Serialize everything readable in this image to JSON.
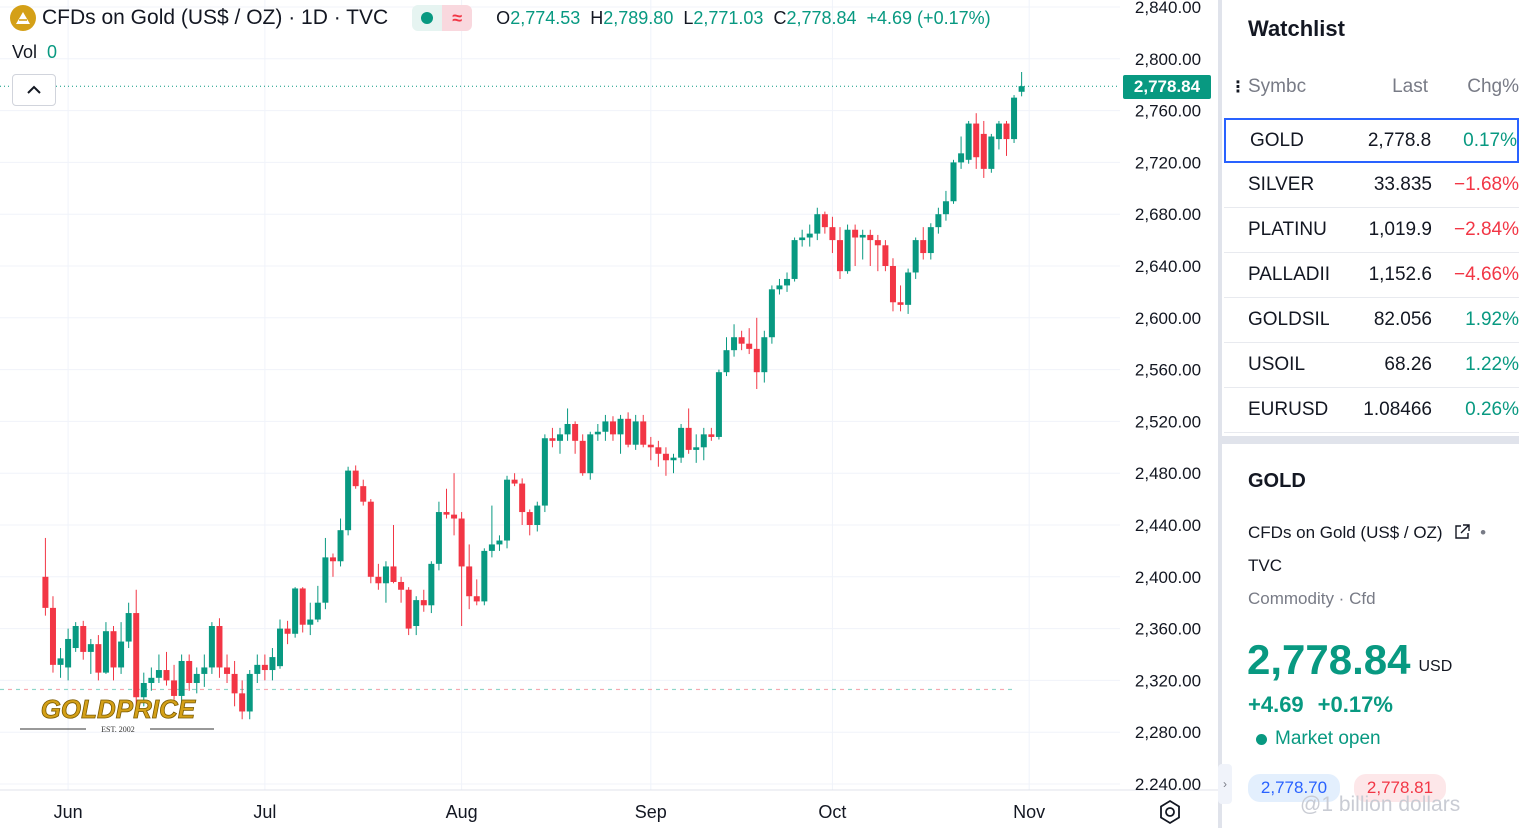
{
  "legend": {
    "title": "CFDs on Gold (US$ / OZ) · 1D · TVC",
    "ohlc": [
      {
        "key": "O",
        "value": "2,774.53"
      },
      {
        "key": "H",
        "value": "2,789.80"
      },
      {
        "key": "L",
        "value": "2,771.03"
      },
      {
        "key": "C",
        "value": "2,778.84"
      }
    ],
    "change": "+4.69 (+0.17%)"
  },
  "volume": {
    "label": "Vol",
    "value": "0"
  },
  "last_price_tag": "2,778.84",
  "watermark_logo": {
    "brand": "GOLDPRICE",
    "est": "EST. 2002"
  },
  "watermark_text": "@1 billion dollars",
  "colors": {
    "up": "#089981",
    "down": "#f23645",
    "accent": "#2962ff",
    "grid": "#f0f3fa"
  },
  "watchlist": {
    "title": "Watchlist",
    "columns": {
      "symbol": "Symbc",
      "last": "Last",
      "change": "Chg%"
    },
    "rows": [
      {
        "symbol": "GOLD",
        "last": "2,778.8",
        "change": "0.17%",
        "dir": "up",
        "selected": true
      },
      {
        "symbol": "SILVER",
        "last": "33.835",
        "change": "−1.68%",
        "dir": "down",
        "selected": false
      },
      {
        "symbol": "PLATINU",
        "last": "1,019.9",
        "change": "−2.84%",
        "dir": "down",
        "selected": false
      },
      {
        "symbol": "PALLADII",
        "last": "1,152.6",
        "change": "−4.66%",
        "dir": "down",
        "selected": false
      },
      {
        "symbol": "GOLDSIL'",
        "last": "82.056",
        "change": "1.92%",
        "dir": "up",
        "selected": false
      },
      {
        "symbol": "USOIL",
        "last": "68.26",
        "change": "1.22%",
        "dir": "up",
        "selected": false
      },
      {
        "symbol": "EURUSD",
        "last": "1.08466",
        "change": "0.26%",
        "dir": "up",
        "selected": false
      }
    ]
  },
  "details": {
    "symbol": "GOLD",
    "name": "CFDs on Gold (US$ / OZ)",
    "exchange": "TVC",
    "type": "Commodity · Cfd",
    "price": "2,778.84",
    "currency": "USD",
    "change_abs": "+4.69",
    "change_pct": "+0.17%",
    "status": "Market open",
    "bid": "2,778.70",
    "ask": "2,778.81"
  },
  "chart_data": {
    "type": "candlestick",
    "title": "CFDs on Gold (US$ / OZ) · 1D · TVC",
    "x_tick_labels": [
      "Jun",
      "Jul",
      "Aug",
      "Sep",
      "Oct",
      "Nov"
    ],
    "x_tick_days": [
      3,
      29,
      55,
      80,
      104,
      130
    ],
    "y_tick_labels": [
      "2,840.00",
      "2,800.00",
      "2,760.00",
      "2,720.00",
      "2,680.00",
      "2,640.00",
      "2,600.00",
      "2,560.00",
      "2,520.00",
      "2,480.00",
      "2,440.00",
      "2,400.00",
      "2,360.00",
      "2,320.00",
      "2,280.00",
      "2.240.00"
    ],
    "ylim": [
      2240,
      2840
    ],
    "xlim": [
      -6,
      142
    ],
    "last_price": 2778.84,
    "reference_price": 2313,
    "candles": [
      {
        "day": 0,
        "o": 2400,
        "h": 2430,
        "l": 2370,
        "c": 2376
      },
      {
        "day": 1,
        "o": 2376,
        "h": 2385,
        "l": 2326,
        "c": 2332
      },
      {
        "day": 2,
        "o": 2332,
        "h": 2345,
        "l": 2322,
        "c": 2337
      },
      {
        "day": 3,
        "o": 2330,
        "h": 2360,
        "l": 2320,
        "c": 2352
      },
      {
        "day": 4,
        "o": 2345,
        "h": 2365,
        "l": 2342,
        "c": 2362
      },
      {
        "day": 5,
        "o": 2362,
        "h": 2366,
        "l": 2336,
        "c": 2342
      },
      {
        "day": 6,
        "o": 2342,
        "h": 2352,
        "l": 2325,
        "c": 2348
      },
      {
        "day": 7,
        "o": 2348,
        "h": 2355,
        "l": 2320,
        "c": 2326
      },
      {
        "day": 8,
        "o": 2326,
        "h": 2365,
        "l": 2325,
        "c": 2358
      },
      {
        "day": 9,
        "o": 2358,
        "h": 2362,
        "l": 2320,
        "c": 2330
      },
      {
        "day": 10,
        "o": 2330,
        "h": 2365,
        "l": 2325,
        "c": 2350
      },
      {
        "day": 11,
        "o": 2350,
        "h": 2380,
        "l": 2345,
        "c": 2372
      },
      {
        "day": 12,
        "o": 2372,
        "h": 2390,
        "l": 2300,
        "c": 2307
      },
      {
        "day": 13,
        "o": 2307,
        "h": 2326,
        "l": 2300,
        "c": 2318
      },
      {
        "day": 14,
        "o": 2318,
        "h": 2330,
        "l": 2312,
        "c": 2322
      },
      {
        "day": 15,
        "o": 2322,
        "h": 2340,
        "l": 2318,
        "c": 2328
      },
      {
        "day": 16,
        "o": 2328,
        "h": 2342,
        "l": 2316,
        "c": 2320
      },
      {
        "day": 17,
        "o": 2320,
        "h": 2332,
        "l": 2305,
        "c": 2308
      },
      {
        "day": 18,
        "o": 2308,
        "h": 2340,
        "l": 2303,
        "c": 2335
      },
      {
        "day": 19,
        "o": 2335,
        "h": 2340,
        "l": 2312,
        "c": 2318
      },
      {
        "day": 20,
        "o": 2318,
        "h": 2330,
        "l": 2310,
        "c": 2325
      },
      {
        "day": 21,
        "o": 2325,
        "h": 2340,
        "l": 2315,
        "c": 2330
      },
      {
        "day": 22,
        "o": 2330,
        "h": 2365,
        "l": 2325,
        "c": 2362
      },
      {
        "day": 23,
        "o": 2362,
        "h": 2368,
        "l": 2322,
        "c": 2330
      },
      {
        "day": 24,
        "o": 2330,
        "h": 2340,
        "l": 2318,
        "c": 2325
      },
      {
        "day": 25,
        "o": 2325,
        "h": 2335,
        "l": 2300,
        "c": 2310
      },
      {
        "day": 26,
        "o": 2310,
        "h": 2320,
        "l": 2290,
        "c": 2296
      },
      {
        "day": 27,
        "o": 2296,
        "h": 2328,
        "l": 2290,
        "c": 2325
      },
      {
        "day": 28,
        "o": 2325,
        "h": 2340,
        "l": 2318,
        "c": 2332
      },
      {
        "day": 29,
        "o": 2332,
        "h": 2340,
        "l": 2320,
        "c": 2328
      },
      {
        "day": 30,
        "o": 2328,
        "h": 2345,
        "l": 2320,
        "c": 2338
      },
      {
        "day": 31,
        "o": 2331,
        "h": 2367,
        "l": 2329,
        "c": 2360
      },
      {
        "day": 32,
        "o": 2360,
        "h": 2366,
        "l": 2348,
        "c": 2356
      },
      {
        "day": 33,
        "o": 2356,
        "h": 2392,
        "l": 2353,
        "c": 2391
      },
      {
        "day": 34,
        "o": 2391,
        "h": 2392,
        "l": 2357,
        "c": 2363
      },
      {
        "day": 35,
        "o": 2363,
        "h": 2380,
        "l": 2355,
        "c": 2367
      },
      {
        "day": 36,
        "o": 2367,
        "h": 2393,
        "l": 2365,
        "c": 2380
      },
      {
        "day": 37,
        "o": 2380,
        "h": 2430,
        "l": 2375,
        "c": 2415
      },
      {
        "day": 38,
        "o": 2415,
        "h": 2418,
        "l": 2400,
        "c": 2412
      },
      {
        "day": 39,
        "o": 2412,
        "h": 2445,
        "l": 2408,
        "c": 2436
      },
      {
        "day": 40,
        "o": 2436,
        "h": 2485,
        "l": 2432,
        "c": 2482
      },
      {
        "day": 41,
        "o": 2482,
        "h": 2486,
        "l": 2468,
        "c": 2470
      },
      {
        "day": 42,
        "o": 2470,
        "h": 2475,
        "l": 2455,
        "c": 2458
      },
      {
        "day": 43,
        "o": 2458,
        "h": 2460,
        "l": 2395,
        "c": 2400
      },
      {
        "day": 44,
        "o": 2400,
        "h": 2410,
        "l": 2390,
        "c": 2395
      },
      {
        "day": 45,
        "o": 2395,
        "h": 2412,
        "l": 2380,
        "c": 2408
      },
      {
        "day": 46,
        "o": 2408,
        "h": 2440,
        "l": 2395,
        "c": 2396
      },
      {
        "day": 47,
        "o": 2396,
        "h": 2400,
        "l": 2380,
        "c": 2390
      },
      {
        "day": 48,
        "o": 2390,
        "h": 2392,
        "l": 2355,
        "c": 2360
      },
      {
        "day": 49,
        "o": 2362,
        "h": 2385,
        "l": 2355,
        "c": 2382
      },
      {
        "day": 50,
        "o": 2382,
        "h": 2390,
        "l": 2373,
        "c": 2378
      },
      {
        "day": 51,
        "o": 2378,
        "h": 2412,
        "l": 2372,
        "c": 2410
      },
      {
        "day": 52,
        "o": 2410,
        "h": 2458,
        "l": 2405,
        "c": 2450
      },
      {
        "day": 53,
        "o": 2450,
        "h": 2468,
        "l": 2445,
        "c": 2448
      },
      {
        "day": 54,
        "o": 2448,
        "h": 2480,
        "l": 2432,
        "c": 2445
      },
      {
        "day": 55,
        "o": 2445,
        "h": 2450,
        "l": 2362,
        "c": 2408
      },
      {
        "day": 56,
        "o": 2408,
        "h": 2425,
        "l": 2375,
        "c": 2385
      },
      {
        "day": 57,
        "o": 2385,
        "h": 2398,
        "l": 2378,
        "c": 2381
      },
      {
        "day": 58,
        "o": 2381,
        "h": 2422,
        "l": 2378,
        "c": 2420
      },
      {
        "day": 59,
        "o": 2420,
        "h": 2455,
        "l": 2415,
        "c": 2425
      },
      {
        "day": 60,
        "o": 2425,
        "h": 2432,
        "l": 2420,
        "c": 2428
      },
      {
        "day": 61,
        "o": 2428,
        "h": 2478,
        "l": 2422,
        "c": 2475
      },
      {
        "day": 62,
        "o": 2475,
        "h": 2480,
        "l": 2470,
        "c": 2472
      },
      {
        "day": 63,
        "o": 2472,
        "h": 2476,
        "l": 2440,
        "c": 2450
      },
      {
        "day": 64,
        "o": 2450,
        "h": 2452,
        "l": 2432,
        "c": 2440
      },
      {
        "day": 65,
        "o": 2440,
        "h": 2458,
        "l": 2435,
        "c": 2455
      },
      {
        "day": 66,
        "o": 2455,
        "h": 2510,
        "l": 2450,
        "c": 2507
      },
      {
        "day": 67,
        "o": 2507,
        "h": 2515,
        "l": 2500,
        "c": 2505
      },
      {
        "day": 68,
        "o": 2505,
        "h": 2515,
        "l": 2495,
        "c": 2510
      },
      {
        "day": 69,
        "o": 2510,
        "h": 2530,
        "l": 2505,
        "c": 2518
      },
      {
        "day": 70,
        "o": 2518,
        "h": 2520,
        "l": 2495,
        "c": 2505
      },
      {
        "day": 71,
        "o": 2505,
        "h": 2510,
        "l": 2478,
        "c": 2480
      },
      {
        "day": 72,
        "o": 2480,
        "h": 2512,
        "l": 2475,
        "c": 2510
      },
      {
        "day": 73,
        "o": 2510,
        "h": 2518,
        "l": 2505,
        "c": 2512
      },
      {
        "day": 74,
        "o": 2512,
        "h": 2525,
        "l": 2505,
        "c": 2520
      },
      {
        "day": 75,
        "o": 2520,
        "h": 2524,
        "l": 2505,
        "c": 2510
      },
      {
        "day": 76,
        "o": 2510,
        "h": 2525,
        "l": 2495,
        "c": 2522
      },
      {
        "day": 77,
        "o": 2522,
        "h": 2527,
        "l": 2500,
        "c": 2502
      },
      {
        "day": 78,
        "o": 2502,
        "h": 2525,
        "l": 2498,
        "c": 2520
      },
      {
        "day": 79,
        "o": 2520,
        "h": 2525,
        "l": 2500,
        "c": 2502
      },
      {
        "day": 80,
        "o": 2502,
        "h": 2508,
        "l": 2490,
        "c": 2500
      },
      {
        "day": 81,
        "o": 2500,
        "h": 2505,
        "l": 2485,
        "c": 2495
      },
      {
        "day": 82,
        "o": 2495,
        "h": 2500,
        "l": 2478,
        "c": 2490
      },
      {
        "day": 83,
        "o": 2490,
        "h": 2495,
        "l": 2480,
        "c": 2492
      },
      {
        "day": 84,
        "o": 2492,
        "h": 2518,
        "l": 2488,
        "c": 2515
      },
      {
        "day": 85,
        "o": 2515,
        "h": 2530,
        "l": 2495,
        "c": 2498
      },
      {
        "day": 86,
        "o": 2498,
        "h": 2510,
        "l": 2488,
        "c": 2500
      },
      {
        "day": 87,
        "o": 2500,
        "h": 2515,
        "l": 2490,
        "c": 2510
      },
      {
        "day": 88,
        "o": 2510,
        "h": 2515,
        "l": 2505,
        "c": 2508
      },
      {
        "day": 89,
        "o": 2508,
        "h": 2560,
        "l": 2506,
        "c": 2558
      },
      {
        "day": 90,
        "o": 2558,
        "h": 2585,
        "l": 2555,
        "c": 2575
      },
      {
        "day": 91,
        "o": 2575,
        "h": 2595,
        "l": 2570,
        "c": 2585
      },
      {
        "day": 92,
        "o": 2585,
        "h": 2590,
        "l": 2575,
        "c": 2580
      },
      {
        "day": 93,
        "o": 2580,
        "h": 2592,
        "l": 2572,
        "c": 2576
      },
      {
        "day": 94,
        "o": 2576,
        "h": 2600,
        "l": 2545,
        "c": 2558
      },
      {
        "day": 95,
        "o": 2558,
        "h": 2590,
        "l": 2550,
        "c": 2585
      },
      {
        "day": 96,
        "o": 2585,
        "h": 2625,
        "l": 2580,
        "c": 2622
      },
      {
        "day": 97,
        "o": 2622,
        "h": 2630,
        "l": 2618,
        "c": 2625
      },
      {
        "day": 98,
        "o": 2625,
        "h": 2635,
        "l": 2620,
        "c": 2630
      },
      {
        "day": 99,
        "o": 2630,
        "h": 2662,
        "l": 2628,
        "c": 2660
      },
      {
        "day": 100,
        "o": 2660,
        "h": 2668,
        "l": 2655,
        "c": 2662
      },
      {
        "day": 101,
        "o": 2662,
        "h": 2672,
        "l": 2655,
        "c": 2665
      },
      {
        "day": 102,
        "o": 2665,
        "h": 2685,
        "l": 2660,
        "c": 2680
      },
      {
        "day": 103,
        "o": 2680,
        "h": 2682,
        "l": 2665,
        "c": 2670
      },
      {
        "day": 104,
        "o": 2670,
        "h": 2678,
        "l": 2650,
        "c": 2660
      },
      {
        "day": 105,
        "o": 2660,
        "h": 2670,
        "l": 2630,
        "c": 2636
      },
      {
        "day": 106,
        "o": 2636,
        "h": 2672,
        "l": 2634,
        "c": 2668
      },
      {
        "day": 107,
        "o": 2668,
        "h": 2672,
        "l": 2640,
        "c": 2662
      },
      {
        "day": 108,
        "o": 2662,
        "h": 2668,
        "l": 2645,
        "c": 2664
      },
      {
        "day": 109,
        "o": 2664,
        "h": 2668,
        "l": 2640,
        "c": 2660
      },
      {
        "day": 110,
        "o": 2660,
        "h": 2664,
        "l": 2636,
        "c": 2656
      },
      {
        "day": 111,
        "o": 2656,
        "h": 2660,
        "l": 2636,
        "c": 2640
      },
      {
        "day": 112,
        "o": 2640,
        "h": 2646,
        "l": 2605,
        "c": 2612
      },
      {
        "day": 113,
        "o": 2612,
        "h": 2625,
        "l": 2605,
        "c": 2610
      },
      {
        "day": 114,
        "o": 2610,
        "h": 2638,
        "l": 2603,
        "c": 2635
      },
      {
        "day": 115,
        "o": 2635,
        "h": 2662,
        "l": 2630,
        "c": 2660
      },
      {
        "day": 116,
        "o": 2660,
        "h": 2670,
        "l": 2645,
        "c": 2650
      },
      {
        "day": 117,
        "o": 2650,
        "h": 2673,
        "l": 2645,
        "c": 2670
      },
      {
        "day": 118,
        "o": 2670,
        "h": 2685,
        "l": 2665,
        "c": 2680
      },
      {
        "day": 119,
        "o": 2680,
        "h": 2698,
        "l": 2675,
        "c": 2690
      },
      {
        "day": 120,
        "o": 2690,
        "h": 2722,
        "l": 2688,
        "c": 2720
      },
      {
        "day": 121,
        "o": 2720,
        "h": 2740,
        "l": 2715,
        "c": 2727
      },
      {
        "day": 122,
        "o": 2722,
        "h": 2752,
        "l": 2719,
        "c": 2750
      },
      {
        "day": 123,
        "o": 2750,
        "h": 2758,
        "l": 2715,
        "c": 2724
      },
      {
        "day": 124,
        "o": 2742,
        "h": 2752,
        "l": 2708,
        "c": 2715
      },
      {
        "day": 125,
        "o": 2715,
        "h": 2742,
        "l": 2712,
        "c": 2740
      },
      {
        "day": 126,
        "o": 2738,
        "h": 2752,
        "l": 2730,
        "c": 2750
      },
      {
        "day": 127,
        "o": 2750,
        "h": 2752,
        "l": 2725,
        "c": 2738
      },
      {
        "day": 128,
        "o": 2738,
        "h": 2772,
        "l": 2735,
        "c": 2770
      },
      {
        "day": 129,
        "o": 2774.53,
        "h": 2789.8,
        "l": 2771.03,
        "c": 2778.84
      }
    ]
  }
}
